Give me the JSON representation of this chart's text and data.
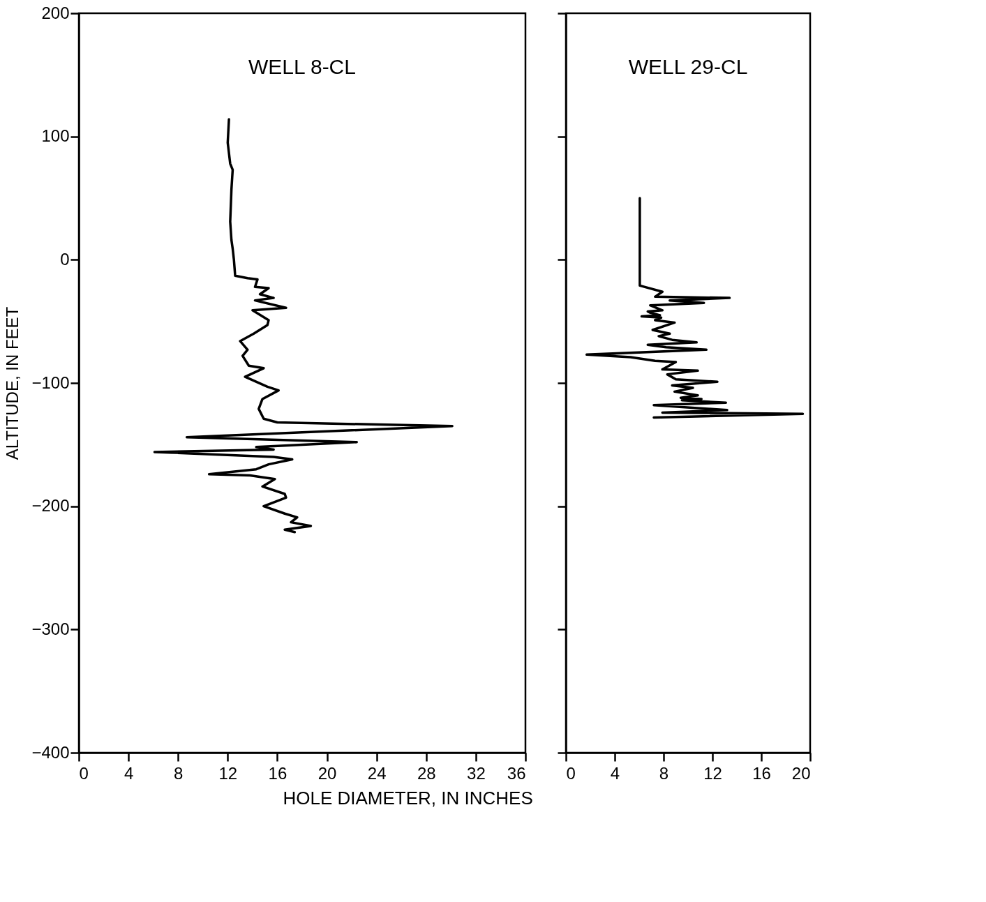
{
  "chart_data": [
    {
      "type": "line",
      "title": "WELL 8-CL",
      "xlabel": "HOLE DIAMETER, IN INCHES",
      "ylabel": "ALTITUDE, IN FEET",
      "xlim": [
        0,
        36
      ],
      "xticks": [
        0,
        4,
        8,
        12,
        16,
        20,
        24,
        28,
        32,
        36
      ],
      "ylim": [
        -400,
        200
      ],
      "yticks": [
        -400,
        -300,
        -200,
        -100,
        0,
        100,
        200
      ],
      "grid": false,
      "series": [
        {
          "color": "#000000",
          "x": [
            12.1,
            12.0,
            12.2,
            12.4,
            12.3,
            12.2,
            12.3,
            12.4,
            12.5,
            12.6,
            13.6,
            14.4,
            14.2,
            15.3,
            14.6,
            15.7,
            14.2,
            16.7,
            14.0,
            15.3,
            15.2,
            14.1,
            13.0,
            13.6,
            13.2,
            13.7,
            14.9,
            13.4,
            15.2,
            16.1,
            14.8,
            14.5,
            14.9,
            16.0,
            30.1,
            8.7,
            22.4,
            14.3,
            15.7,
            6.1,
            15.7,
            17.2,
            15.3,
            14.3,
            10.5,
            13.8,
            15.8,
            14.8,
            16.6,
            16.7,
            14.9,
            16.6,
            17.6,
            17.1,
            18.7,
            16.6,
            17.4
          ],
          "values": [
            114,
            95,
            78,
            73,
            57,
            31,
            16,
            9,
            0,
            -13,
            -15,
            -16,
            -22,
            -23,
            -28,
            -31,
            -33,
            -39,
            -41,
            -49,
            -53,
            -60,
            -66,
            -73,
            -78,
            -86,
            -88,
            -95,
            -103,
            -106,
            -113,
            -121,
            -129,
            -132,
            -135,
            -144,
            -148,
            -152,
            -154,
            -156,
            -160,
            -162,
            -166,
            -170,
            -174,
            -175,
            -178,
            -184,
            -190,
            -193,
            -200,
            -206,
            -209,
            -213,
            -216,
            -219,
            -221
          ]
        }
      ]
    },
    {
      "type": "line",
      "title": "WELL 29-CL",
      "xlim": [
        0,
        20
      ],
      "xticks": [
        0,
        4,
        8,
        12,
        16,
        20
      ],
      "ylim": [
        -400,
        200
      ],
      "yticks": [
        -400,
        -300,
        -200,
        -100,
        0,
        100,
        200
      ],
      "tick_labels": "x",
      "grid": false,
      "series": [
        {
          "color": "#000000",
          "x": [
            6.05,
            6.05,
            7.9,
            7.3,
            13.4,
            8.5,
            11.3,
            6.9,
            7.9,
            6.7,
            6.9,
            7.7,
            6.2,
            7.8,
            7.3,
            8.9,
            7.1,
            8.5,
            7.6,
            8.7,
            10.7,
            6.7,
            8.2,
            11.5,
            1.7,
            5.3,
            7.3,
            9.0,
            7.9,
            10.8,
            8.3,
            9.0,
            12.4,
            8.7,
            10.4,
            8.9,
            10.8,
            9.4,
            11.1,
            9.5,
            13.1,
            7.2,
            13.2,
            7.9,
            19.4,
            7.2
          ],
          "values": [
            50,
            -21,
            -26,
            -30,
            -31,
            -33,
            -35,
            -37,
            -41,
            -42,
            -43,
            -45,
            -46,
            -47,
            -49,
            -51,
            -57,
            -60,
            -62,
            -65,
            -67,
            -69,
            -71,
            -73,
            -77,
            -79,
            -82,
            -83,
            -89,
            -90,
            -93,
            -97,
            -99,
            -102,
            -104,
            -107,
            -110,
            -112,
            -113,
            -114,
            -116,
            -118,
            -122,
            -124,
            -125,
            -128
          ]
        }
      ]
    }
  ]
}
